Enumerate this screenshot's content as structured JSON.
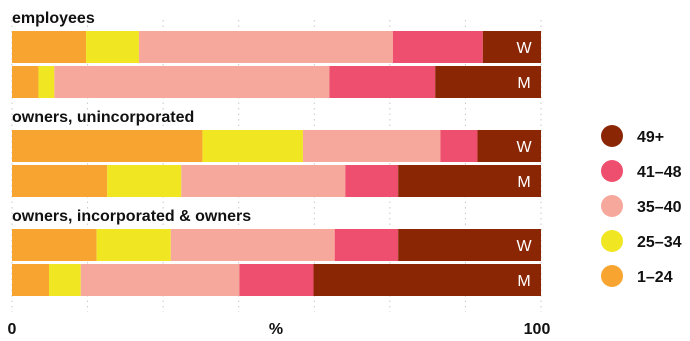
{
  "chart_data": {
    "type": "bar",
    "stacked": true,
    "orientation": "horizontal",
    "xlabel": "%",
    "xlim": [
      0,
      100
    ],
    "x_ticks": [
      "0",
      "100"
    ],
    "grid": "vertical dotted",
    "legend_placement": "right",
    "legend_order": [
      "49+",
      "41–48",
      "35–40",
      "25–34",
      "1–24"
    ],
    "series": [
      {
        "name": "1–24",
        "color": "#f7a530"
      },
      {
        "name": "25–34",
        "color": "#f0e622"
      },
      {
        "name": "35–40",
        "color": "#f7a89c"
      },
      {
        "name": "41–48",
        "color": "#ef4f6e"
      },
      {
        "name": "49+",
        "color": "#8a2604"
      }
    ],
    "groups": [
      {
        "title": "employees",
        "rows": [
          {
            "label": "W",
            "values": [
              14,
              10,
              48,
              17,
              11
            ]
          },
          {
            "label": "M",
            "values": [
              5,
              3,
              52,
              20,
              20
            ]
          }
        ]
      },
      {
        "title": "owners, unincorporated",
        "rows": [
          {
            "label": "W",
            "values": [
              36,
              19,
              26,
              7,
              12
            ]
          },
          {
            "label": "M",
            "values": [
              18,
              14,
              31,
              10,
              27
            ]
          }
        ]
      },
      {
        "title": "owners, incorporated & owners",
        "rows": [
          {
            "label": "W",
            "values": [
              16,
              14,
              31,
              12,
              27
            ]
          },
          {
            "label": "M",
            "values": [
              7,
              6,
              30,
              14,
              43
            ]
          }
        ]
      }
    ]
  }
}
